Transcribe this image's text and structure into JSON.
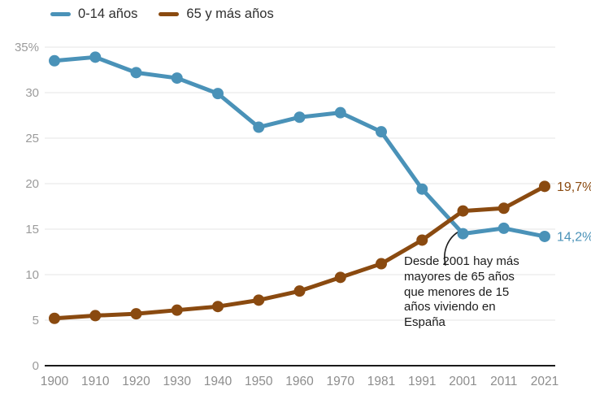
{
  "legend": {
    "items": [
      {
        "label": "0-14 años",
        "color": "#4a92b8"
      },
      {
        "label": "65 y más años",
        "color": "#8a4a10"
      }
    ]
  },
  "chart_data": {
    "type": "line",
    "categories": [
      "1900",
      "1910",
      "1920",
      "1930",
      "1940",
      "1950",
      "1960",
      "1970",
      "1981",
      "1991",
      "2001",
      "2011",
      "2021"
    ],
    "series": [
      {
        "name": "0-14 años",
        "color": "#4a92b8",
        "values": [
          33.5,
          33.9,
          32.2,
          31.6,
          29.9,
          26.2,
          27.3,
          27.8,
          25.7,
          19.4,
          14.5,
          15.1,
          14.2
        ],
        "end_label": "14,2%"
      },
      {
        "name": "65 y más años",
        "color": "#8a4a10",
        "values": [
          5.2,
          5.5,
          5.7,
          6.1,
          6.5,
          7.2,
          8.2,
          9.7,
          11.2,
          13.8,
          17.0,
          17.3,
          19.7
        ],
        "end_label": "19,7%"
      }
    ],
    "ylim": [
      0,
      35
    ],
    "y_ticks": [
      {
        "value": 0,
        "label": "0"
      },
      {
        "value": 5,
        "label": "5"
      },
      {
        "value": 10,
        "label": "10"
      },
      {
        "value": 15,
        "label": "15"
      },
      {
        "value": 20,
        "label": "20"
      },
      {
        "value": 25,
        "label": "25"
      },
      {
        "value": 30,
        "label": "30"
      },
      {
        "value": 35,
        "label": "35%"
      }
    ],
    "grid": true,
    "legend_position": "top-left",
    "annotation": {
      "lines": [
        "Desde 2001 hay más",
        "mayores de 65 años",
        "que menores de 15",
        "años viviendo en",
        "España"
      ]
    },
    "colors": {
      "grid": "#e4e4e4",
      "baseline": "#1a1a1a",
      "y_tick_label": "#9b9b9b",
      "x_tick_label": "#8d8d8d",
      "annotation_text": "#1b1b1b"
    }
  }
}
